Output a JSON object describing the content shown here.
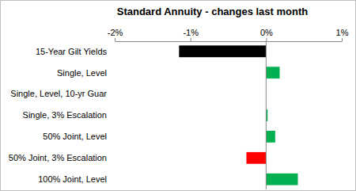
{
  "chart_data": {
    "type": "bar",
    "orientation": "horizontal",
    "title": "Standard Annuity - changes last month",
    "categories": [
      "15-Year Gilt Yields",
      "Single, Level",
      "Single, Level, 10-yr Guar",
      "Single, 3% Escalation",
      "50% Joint, Level",
      "50% Joint, 3% Escalation",
      "100% Joint, Level"
    ],
    "values": [
      -1.15,
      0.18,
      0,
      0.02,
      0.12,
      -0.26,
      0.42
    ],
    "colors": [
      "#000000",
      "#00b050",
      "#00b050",
      "#00b050",
      "#00b050",
      "#ff0000",
      "#00b050"
    ],
    "xlim": [
      -2,
      1
    ],
    "xticks": [
      {
        "value": -2,
        "label": "-2%"
      },
      {
        "value": -1,
        "label": "-1%"
      },
      {
        "value": 0,
        "label": "0%"
      },
      {
        "value": 1,
        "label": "1%"
      }
    ],
    "grid": false
  }
}
